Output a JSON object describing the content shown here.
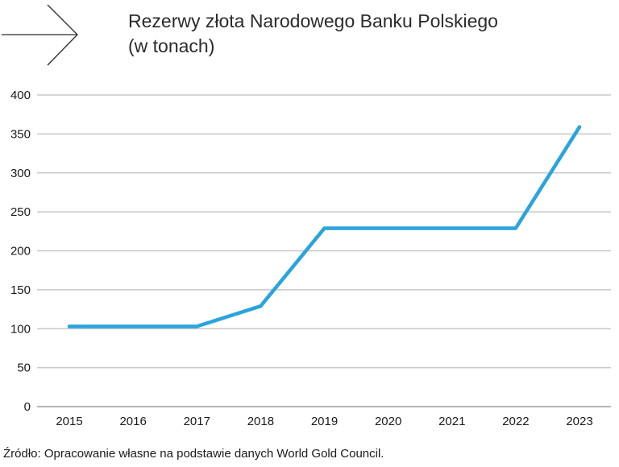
{
  "chart_data": {
    "type": "line",
    "title_line1": "Rezerwy złota Narodowego Banku Polskiego",
    "title_line2": "(w tonach)",
    "categories": [
      "2015",
      "2016",
      "2017",
      "2018",
      "2019",
      "2020",
      "2021",
      "2022",
      "2023"
    ],
    "series": [
      {
        "values": [
          103,
          103,
          103,
          129,
          229,
          229,
          229,
          229,
          359
        ]
      }
    ],
    "ylim": [
      0,
      400
    ],
    "yticks": [
      "0",
      "50",
      "100",
      "150",
      "200",
      "250",
      "300",
      "350",
      "400"
    ],
    "grid": true,
    "line_color": "#2aa4dd",
    "grid_color": "#c8c8c8"
  },
  "source_text": "Źródło: Opracowanie własne na podstawie danych World Gold Council.",
  "icons": {
    "arrow": "arrow-right-icon"
  }
}
